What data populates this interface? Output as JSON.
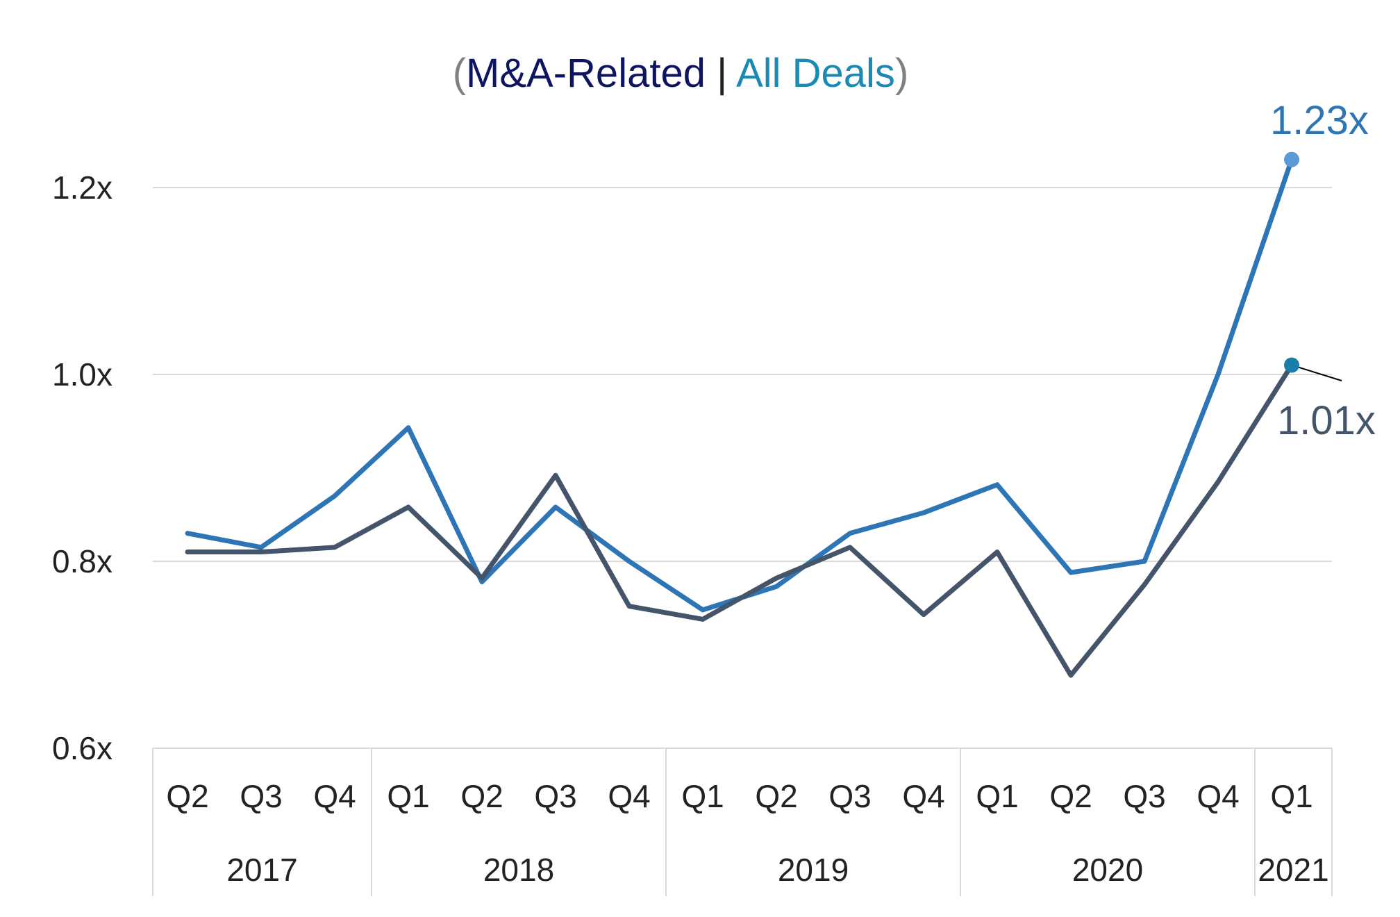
{
  "chart_data": {
    "type": "line",
    "title": {
      "open_paren": "(",
      "part1": "M&A-Related",
      "separator": " | ",
      "part2": "All Deals",
      "close_paren": ")",
      "colors": {
        "paren": "#808080",
        "part1": "#0d1560",
        "separator": "#222222",
        "part2": "#1a8ab4"
      }
    },
    "categories": [
      "Q2",
      "Q3",
      "Q4",
      "Q1",
      "Q2",
      "Q3",
      "Q4",
      "Q1",
      "Q2",
      "Q3",
      "Q4",
      "Q1",
      "Q2",
      "Q3",
      "Q4",
      "Q1"
    ],
    "groups": [
      {
        "label": "2017",
        "count": 3
      },
      {
        "label": "2018",
        "count": 4
      },
      {
        "label": "2019",
        "count": 4
      },
      {
        "label": "2020",
        "count": 4
      },
      {
        "label": "2021",
        "count": 1
      }
    ],
    "series": [
      {
        "color": "#2e75b6",
        "values": [
          0.83,
          0.815,
          0.87,
          0.943,
          0.778,
          0.858,
          0.8,
          0.748,
          0.773,
          0.83,
          0.852,
          0.882,
          0.788,
          0.8,
          1.0,
          1.23
        ],
        "end_label": "1.23x",
        "end_marker_color": "#5b9bd5",
        "end_label_color": "#2e75b6"
      },
      {
        "color": "#44546a",
        "values": [
          0.81,
          0.81,
          0.815,
          0.858,
          0.782,
          0.892,
          0.752,
          0.738,
          0.782,
          0.815,
          0.743,
          0.81,
          0.678,
          0.775,
          0.885,
          1.01
        ],
        "end_label": "1.01x",
        "end_marker_color": "#1a7fa8",
        "end_label_color": "#44546a"
      }
    ],
    "y_ticks": [
      "0.6x",
      "0.8x",
      "1.0x",
      "1.2x"
    ],
    "y_tick_values": [
      0.6,
      0.8,
      1.0,
      1.2
    ],
    "ylim": [
      0.6,
      1.27
    ],
    "grid": true,
    "legend": "none",
    "xlabel": "",
    "ylabel": ""
  }
}
